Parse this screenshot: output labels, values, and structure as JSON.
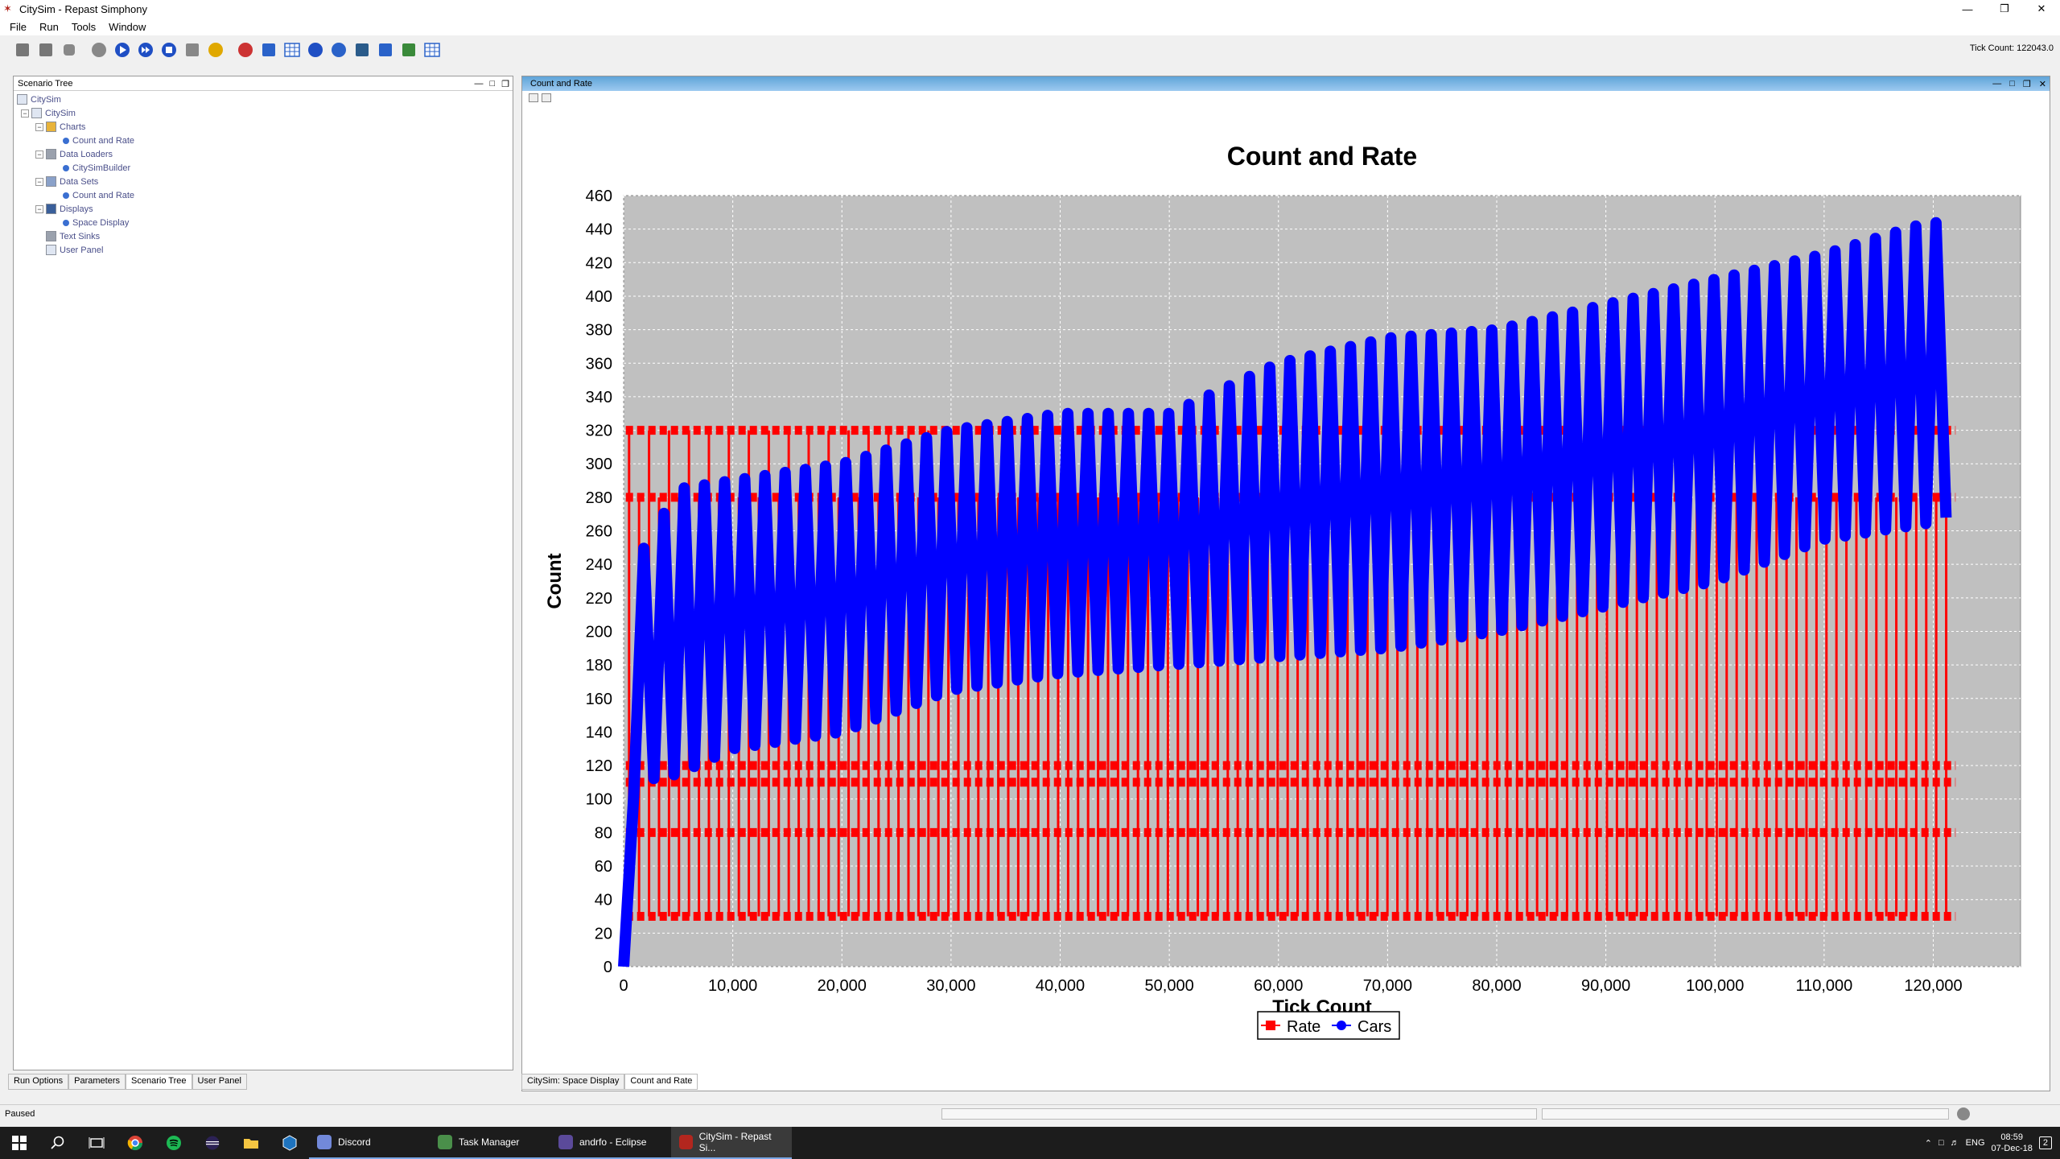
{
  "window": {
    "title": "CitySim - Repast Simphony"
  },
  "menu": [
    "File",
    "Run",
    "Tools",
    "Window"
  ],
  "toolbar": {
    "icons": [
      "save-icon",
      "save-all-icon",
      "database-icon",
      "initialize-icon",
      "play-icon",
      "step-icon",
      "stop-icon",
      "reset-icon",
      "world-icon",
      "refresh-icon",
      "chart-icon",
      "table-icon",
      "list-icon",
      "globe-icon",
      "map-icon",
      "search-icon",
      "picture-icon",
      "layout-icon"
    ],
    "tick_label": "Tick Count: 122043.0"
  },
  "scenario_tree": {
    "title": "Scenario Tree",
    "items": [
      {
        "label": "CitySim",
        "level": 0,
        "expander": "",
        "icon": "doc"
      },
      {
        "label": "CitySim",
        "level": 1,
        "expander": "−",
        "icon": "doc"
      },
      {
        "label": "Charts",
        "level": 2,
        "expander": "−",
        "icon": "chart"
      },
      {
        "label": "Count and Rate",
        "level": 3,
        "expander": "",
        "icon": "dot"
      },
      {
        "label": "Data Loaders",
        "level": 2,
        "expander": "−",
        "icon": "loader"
      },
      {
        "label": "CitySimBuilder",
        "level": 3,
        "expander": "",
        "icon": "dot"
      },
      {
        "label": "Data Sets",
        "level": 2,
        "expander": "−",
        "icon": "dataset"
      },
      {
        "label": "Count and Rate",
        "level": 3,
        "expander": "",
        "icon": "dot"
      },
      {
        "label": "Displays",
        "level": 2,
        "expander": "−",
        "icon": "display"
      },
      {
        "label": "Space Display",
        "level": 3,
        "expander": "",
        "icon": "dot"
      },
      {
        "label": "Text Sinks",
        "level": 2,
        "expander": "",
        "icon": "sink"
      },
      {
        "label": "User Panel",
        "level": 2,
        "expander": "",
        "icon": "panel"
      }
    ]
  },
  "left_tabs": [
    {
      "label": "Run Options",
      "active": false
    },
    {
      "label": "Parameters",
      "active": false
    },
    {
      "label": "Scenario Tree",
      "active": true
    },
    {
      "label": "User Panel",
      "active": false
    }
  ],
  "chart_panel": {
    "title": "Count and Rate"
  },
  "bottom_tabs": [
    {
      "label": "CitySim: Space Display",
      "active": false
    },
    {
      "label": "Count and Rate",
      "active": true
    }
  ],
  "chart_data": {
    "type": "line",
    "title": "Count and Rate",
    "xlabel": "Tick Count",
    "ylabel": "Count",
    "xlim": [
      0,
      128000
    ],
    "ylim": [
      0,
      460
    ],
    "x_ticks": [
      0,
      10000,
      20000,
      30000,
      40000,
      50000,
      60000,
      70000,
      80000,
      90000,
      100000,
      110000,
      120000
    ],
    "x_tick_labels": [
      "0",
      "10,000",
      "20,000",
      "30,000",
      "40,000",
      "50,000",
      "60,000",
      "70,000",
      "80,000",
      "90,000",
      "100,000",
      "110,000",
      "120,000"
    ],
    "y_ticks": [
      0,
      20,
      40,
      60,
      80,
      100,
      120,
      140,
      160,
      180,
      200,
      220,
      240,
      260,
      280,
      300,
      320,
      340,
      360,
      380,
      400,
      420,
      440,
      460
    ],
    "grid": true,
    "legend": "bottom",
    "plot_background": "#c0c0c0",
    "series": [
      {
        "name": "Rate",
        "color": "#ff0000",
        "marker": "square",
        "levels": [
          30,
          80,
          110,
          120,
          280,
          320
        ],
        "x_end": 122043
      },
      {
        "name": "Cars",
        "color": "#0000ff",
        "marker": "circle",
        "x": [
          0,
          1000,
          5000,
          10000,
          20000,
          30000,
          40000,
          50000,
          60000,
          70000,
          80000,
          90000,
          100000,
          110000,
          120000,
          122043
        ],
        "min": [
          0,
          110,
          115,
          130,
          140,
          165,
          175,
          180,
          185,
          190,
          200,
          215,
          230,
          255,
          265,
          270
        ],
        "max": [
          0,
          240,
          285,
          290,
          300,
          320,
          330,
          330,
          360,
          375,
          380,
          395,
          410,
          425,
          445,
          435
        ]
      }
    ]
  },
  "status": {
    "text": "Paused"
  },
  "taskbar": {
    "apps": [
      {
        "label": "Discord",
        "color": "#7289da",
        "active": false
      },
      {
        "label": "Task Manager",
        "color": "#4a8f4a",
        "active": false
      },
      {
        "label": "andrfo - Eclipse",
        "color": "#5b4a9a",
        "active": false
      },
      {
        "label": "CitySim - Repast Si...",
        "color": "#b3261e",
        "active": true
      }
    ],
    "lang": "ENG",
    "time": "08:59",
    "date": "07-Dec-18",
    "notifications": "2"
  }
}
